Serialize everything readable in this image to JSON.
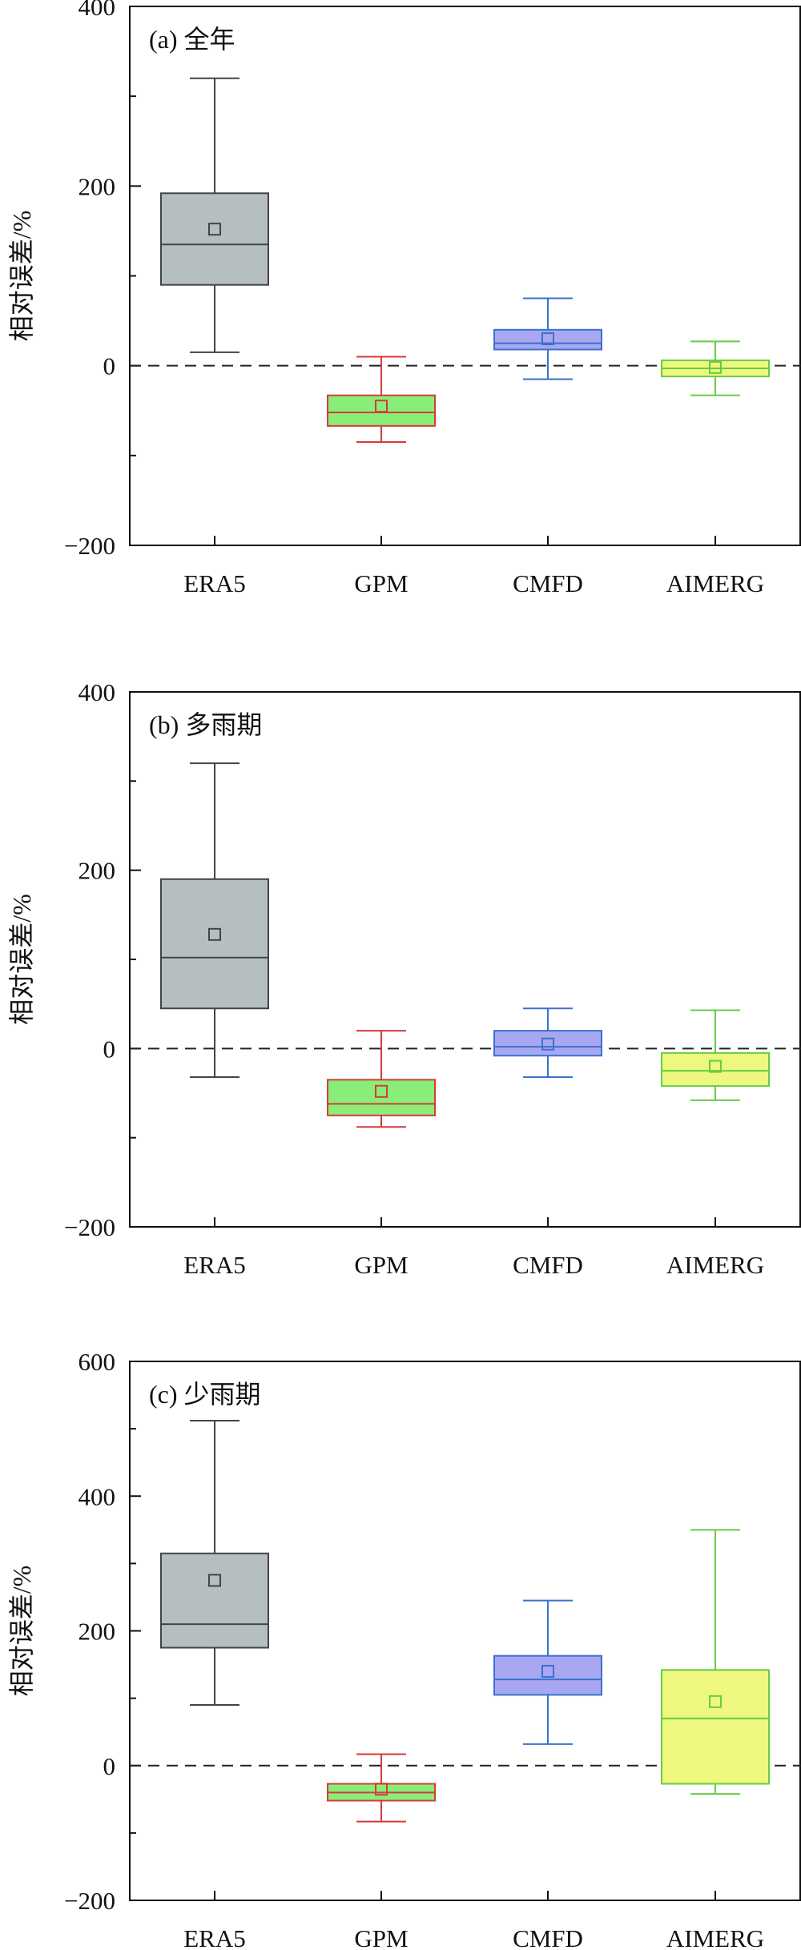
{
  "chart_data": [
    {
      "type": "box",
      "panel_label": "(a) 全年",
      "ylabel": "相对误差/%",
      "ylim": [
        -200,
        400
      ],
      "yticks": [
        -200,
        0,
        200,
        400
      ],
      "reference_line": 0,
      "categories": [
        "ERA5",
        "GPM",
        "CMFD",
        "AIMERG"
      ],
      "boxes": [
        {
          "name": "ERA5",
          "fill": "#b5bfc1",
          "stroke": "#444444",
          "whisker_low": 15,
          "q1": 90,
          "median": 135,
          "q3": 192,
          "whisker_high": 320,
          "mean": 152
        },
        {
          "name": "GPM",
          "fill": "#88ee77",
          "stroke": "#d63a3a",
          "whisker_low": -85,
          "q1": -67,
          "median": -52,
          "q3": -33,
          "whisker_high": 10,
          "mean": -45
        },
        {
          "name": "CMFD",
          "fill": "#a9a6f2",
          "stroke": "#3a72cc",
          "whisker_low": -15,
          "q1": 18,
          "median": 25,
          "q3": 40,
          "whisker_high": 75,
          "mean": 30
        },
        {
          "name": "AIMERG",
          "fill": "#eef77e",
          "stroke": "#66cc44",
          "whisker_low": -33,
          "q1": -12,
          "median": -3,
          "q3": 6,
          "whisker_high": 27,
          "mean": -2
        }
      ]
    },
    {
      "type": "box",
      "panel_label": "(b) 多雨期",
      "ylabel": "相对误差/%",
      "ylim": [
        -200,
        400
      ],
      "yticks": [
        -200,
        0,
        200,
        400
      ],
      "reference_line": 0,
      "categories": [
        "ERA5",
        "GPM",
        "CMFD",
        "AIMERG"
      ],
      "boxes": [
        {
          "name": "ERA5",
          "fill": "#b5bfc1",
          "stroke": "#444444",
          "whisker_low": -32,
          "q1": 45,
          "median": 102,
          "q3": 190,
          "whisker_high": 320,
          "mean": 128
        },
        {
          "name": "GPM",
          "fill": "#88ee77",
          "stroke": "#d63a3a",
          "whisker_low": -88,
          "q1": -75,
          "median": -62,
          "q3": -35,
          "whisker_high": 20,
          "mean": -48
        },
        {
          "name": "CMFD",
          "fill": "#a9a6f2",
          "stroke": "#3a72cc",
          "whisker_low": -32,
          "q1": -8,
          "median": 2,
          "q3": 20,
          "whisker_high": 45,
          "mean": 5
        },
        {
          "name": "AIMERG",
          "fill": "#eef77e",
          "stroke": "#66cc44",
          "whisker_low": -58,
          "q1": -42,
          "median": -25,
          "q3": -5,
          "whisker_high": 43,
          "mean": -20
        }
      ]
    },
    {
      "type": "box",
      "panel_label": "(c) 少雨期",
      "ylabel": "相对误差/%",
      "ylim": [
        -200,
        600
      ],
      "yticks": [
        -200,
        0,
        200,
        400,
        600
      ],
      "reference_line": 0,
      "categories": [
        "ERA5",
        "GPM",
        "CMFD",
        "AIMERG"
      ],
      "boxes": [
        {
          "name": "ERA5",
          "fill": "#b5bfc1",
          "stroke": "#444444",
          "whisker_low": 90,
          "q1": 175,
          "median": 210,
          "q3": 315,
          "whisker_high": 512,
          "mean": 275
        },
        {
          "name": "GPM",
          "fill": "#88ee77",
          "stroke": "#d63a3a",
          "whisker_low": -83,
          "q1": -52,
          "median": -40,
          "q3": -27,
          "whisker_high": 17,
          "mean": -35
        },
        {
          "name": "CMFD",
          "fill": "#a9a6f2",
          "stroke": "#3a72cc",
          "whisker_low": 32,
          "q1": 105,
          "median": 128,
          "q3": 163,
          "whisker_high": 245,
          "mean": 140
        },
        {
          "name": "AIMERG",
          "fill": "#eef77e",
          "stroke": "#66cc44",
          "whisker_low": -42,
          "q1": -27,
          "median": 70,
          "q3": 142,
          "whisker_high": 350,
          "mean": 95
        }
      ]
    }
  ]
}
